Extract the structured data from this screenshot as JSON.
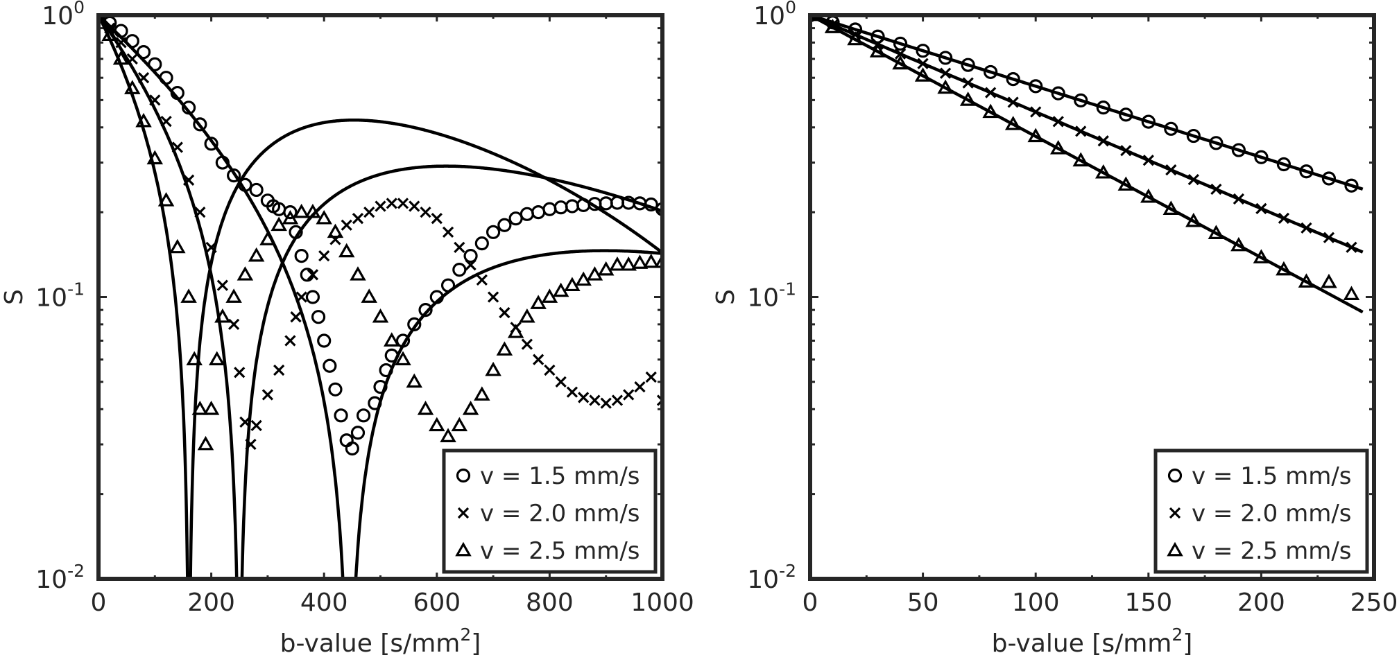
{
  "chart_data": [
    {
      "type": "scatter",
      "title": "",
      "xlabel": "b-value [s/mm",
      "xlabel_sup": "2",
      "xlabel_close": "]",
      "ylabel": "S",
      "xlim": [
        0,
        1000
      ],
      "ylim": [
        0.01,
        1
      ],
      "yscale": "log",
      "x_ticks": [
        0,
        200,
        400,
        600,
        800,
        1000
      ],
      "y_ticks": [
        {
          "value": 0.01,
          "base": "10",
          "exp": "-2"
        },
        {
          "value": 0.1,
          "base": "10",
          "exp": "-1"
        },
        {
          "value": 1,
          "base": "10",
          "exp": "0"
        }
      ],
      "legend_position": "bottom-right",
      "series": [
        {
          "name": "v = 1.5 mm/s",
          "marker": "circle",
          "v": 1.5,
          "points": [
            [
              0,
              1.0
            ],
            [
              20,
              0.94
            ],
            [
              40,
              0.88
            ],
            [
              60,
              0.81
            ],
            [
              80,
              0.74
            ],
            [
              100,
              0.67
            ],
            [
              120,
              0.6
            ],
            [
              140,
              0.53
            ],
            [
              160,
              0.47
            ],
            [
              180,
              0.41
            ],
            [
              200,
              0.35
            ],
            [
              220,
              0.3
            ],
            [
              240,
              0.27
            ],
            [
              260,
              0.25
            ],
            [
              280,
              0.24
            ],
            [
              300,
              0.22
            ],
            [
              310,
              0.21
            ],
            [
              320,
              0.205
            ],
            [
              340,
              0.2
            ],
            [
              350,
              0.17
            ],
            [
              360,
              0.14
            ],
            [
              370,
              0.12
            ],
            [
              380,
              0.1
            ],
            [
              390,
              0.085
            ],
            [
              400,
              0.07
            ],
            [
              410,
              0.057
            ],
            [
              420,
              0.047
            ],
            [
              430,
              0.038
            ],
            [
              440,
              0.031
            ],
            [
              450,
              0.029
            ],
            [
              460,
              0.033
            ],
            [
              470,
              0.038
            ],
            [
              490,
              0.042
            ],
            [
              500,
              0.048
            ],
            [
              510,
              0.055
            ],
            [
              520,
              0.062
            ],
            [
              540,
              0.07
            ],
            [
              560,
              0.08
            ],
            [
              580,
              0.09
            ],
            [
              600,
              0.1
            ],
            [
              620,
              0.11
            ],
            [
              640,
              0.125
            ],
            [
              660,
              0.14
            ],
            [
              680,
              0.155
            ],
            [
              700,
              0.17
            ],
            [
              720,
              0.18
            ],
            [
              740,
              0.19
            ],
            [
              760,
              0.197
            ],
            [
              780,
              0.2
            ],
            [
              800,
              0.205
            ],
            [
              820,
              0.208
            ],
            [
              840,
              0.21
            ],
            [
              860,
              0.212
            ],
            [
              880,
              0.214
            ],
            [
              900,
              0.215
            ],
            [
              920,
              0.216
            ],
            [
              940,
              0.216
            ],
            [
              960,
              0.215
            ],
            [
              980,
              0.213
            ],
            [
              1000,
              0.205
            ]
          ]
        },
        {
          "name": "v = 2.0 mm/s",
          "marker": "x",
          "v": 2.0,
          "points": [
            [
              0,
              1.0
            ],
            [
              20,
              0.9
            ],
            [
              40,
              0.8
            ],
            [
              60,
              0.7
            ],
            [
              80,
              0.6
            ],
            [
              100,
              0.5
            ],
            [
              120,
              0.42
            ],
            [
              140,
              0.34
            ],
            [
              160,
              0.26
            ],
            [
              180,
              0.2
            ],
            [
              200,
              0.15
            ],
            [
              220,
              0.11
            ],
            [
              240,
              0.08
            ],
            [
              250,
              0.054
            ],
            [
              260,
              0.036
            ],
            [
              270,
              0.03
            ],
            [
              280,
              0.035
            ],
            [
              300,
              0.045
            ],
            [
              320,
              0.055
            ],
            [
              340,
              0.07
            ],
            [
              350,
              0.085
            ],
            [
              360,
              0.1
            ],
            [
              380,
              0.12
            ],
            [
              400,
              0.14
            ],
            [
              420,
              0.16
            ],
            [
              440,
              0.18
            ],
            [
              460,
              0.19
            ],
            [
              480,
              0.2
            ],
            [
              500,
              0.21
            ],
            [
              520,
              0.215
            ],
            [
              540,
              0.215
            ],
            [
              560,
              0.21
            ],
            [
              580,
              0.2
            ],
            [
              600,
              0.19
            ],
            [
              620,
              0.17
            ],
            [
              640,
              0.15
            ],
            [
              660,
              0.13
            ],
            [
              680,
              0.115
            ],
            [
              700,
              0.1
            ],
            [
              720,
              0.088
            ],
            [
              740,
              0.078
            ],
            [
              760,
              0.068
            ],
            [
              780,
              0.06
            ],
            [
              800,
              0.055
            ],
            [
              820,
              0.05
            ],
            [
              840,
              0.046
            ],
            [
              860,
              0.044
            ],
            [
              880,
              0.043
            ],
            [
              900,
              0.042
            ],
            [
              920,
              0.043
            ],
            [
              940,
              0.045
            ],
            [
              960,
              0.048
            ],
            [
              980,
              0.052
            ],
            [
              1000,
              0.043
            ]
          ]
        },
        {
          "name": "v = 2.5 mm/s",
          "marker": "triangle",
          "v": 2.5,
          "points": [
            [
              0,
              1.0
            ],
            [
              20,
              0.85
            ],
            [
              40,
              0.7
            ],
            [
              60,
              0.55
            ],
            [
              80,
              0.42
            ],
            [
              100,
              0.31
            ],
            [
              120,
              0.22
            ],
            [
              140,
              0.15
            ],
            [
              160,
              0.1
            ],
            [
              170,
              0.06
            ],
            [
              180,
              0.04
            ],
            [
              190,
              0.03
            ],
            [
              200,
              0.04
            ],
            [
              210,
              0.06
            ],
            [
              220,
              0.085
            ],
            [
              240,
              0.1
            ],
            [
              260,
              0.12
            ],
            [
              280,
              0.14
            ],
            [
              300,
              0.16
            ],
            [
              320,
              0.18
            ],
            [
              340,
              0.19
            ],
            [
              360,
              0.2
            ],
            [
              380,
              0.2
            ],
            [
              400,
              0.19
            ],
            [
              420,
              0.17
            ],
            [
              440,
              0.145
            ],
            [
              460,
              0.12
            ],
            [
              480,
              0.1
            ],
            [
              500,
              0.085
            ],
            [
              520,
              0.07
            ],
            [
              540,
              0.06
            ],
            [
              560,
              0.05
            ],
            [
              580,
              0.04
            ],
            [
              600,
              0.035
            ],
            [
              620,
              0.032
            ],
            [
              640,
              0.035
            ],
            [
              660,
              0.04
            ],
            [
              680,
              0.045
            ],
            [
              700,
              0.055
            ],
            [
              720,
              0.065
            ],
            [
              740,
              0.075
            ],
            [
              760,
              0.085
            ],
            [
              780,
              0.095
            ],
            [
              800,
              0.1
            ],
            [
              820,
              0.105
            ],
            [
              840,
              0.11
            ],
            [
              860,
              0.115
            ],
            [
              880,
              0.12
            ],
            [
              900,
              0.125
            ],
            [
              920,
              0.13
            ],
            [
              940,
              0.13
            ],
            [
              960,
              0.132
            ],
            [
              980,
              0.133
            ],
            [
              1000,
              0.133
            ]
          ]
        }
      ]
    },
    {
      "type": "scatter",
      "title": "",
      "xlabel": "b-value [s/mm",
      "xlabel_sup": "2",
      "xlabel_close": "]",
      "ylabel": "S",
      "xlim": [
        0,
        250
      ],
      "ylim": [
        0.01,
        1
      ],
      "yscale": "log",
      "x_ticks": [
        0,
        50,
        100,
        150,
        200,
        250
      ],
      "y_ticks": [
        {
          "value": 0.01,
          "base": "10",
          "exp": "-2"
        },
        {
          "value": 0.1,
          "base": "10",
          "exp": "-1"
        },
        {
          "value": 1,
          "base": "10",
          "exp": "0"
        }
      ],
      "legend_position": "bottom-right",
      "series": [
        {
          "name": "v = 1.5 mm/s",
          "marker": "circle",
          "rate": 0.0058,
          "x": [
            0,
            10,
            20,
            30,
            40,
            50,
            60,
            70,
            80,
            90,
            100,
            110,
            120,
            130,
            140,
            150,
            160,
            170,
            180,
            190,
            200,
            210,
            220,
            230,
            240
          ]
        },
        {
          "name": "v = 2.0 mm/s",
          "marker": "x",
          "rate": 0.0079,
          "x": [
            0,
            10,
            20,
            30,
            40,
            50,
            60,
            70,
            80,
            90,
            100,
            110,
            120,
            130,
            140,
            150,
            160,
            170,
            180,
            190,
            200,
            210,
            220,
            230,
            240
          ]
        },
        {
          "name": "v = 2.5 mm/s",
          "marker": "triangle",
          "rate": 0.0099,
          "x": [
            0,
            10,
            20,
            30,
            40,
            50,
            60,
            70,
            80,
            90,
            100,
            110,
            120,
            130,
            140,
            150,
            160,
            170,
            180,
            190,
            200,
            210,
            220,
            230,
            240
          ]
        }
      ]
    }
  ]
}
